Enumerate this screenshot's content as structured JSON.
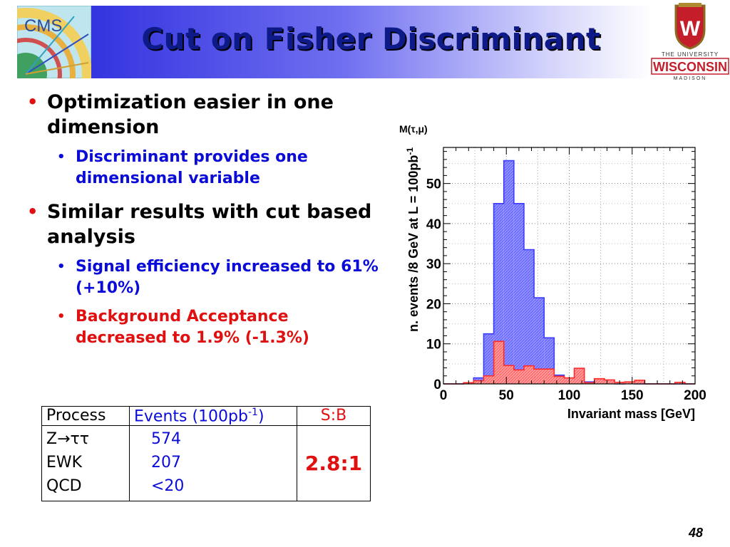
{
  "slide": {
    "title": "Cut on Fisher Discriminant",
    "page_number": "48"
  },
  "logos": {
    "left_text": "CMS",
    "right_line1": "THE UNIVERSITY",
    "right_line2": "WISCONSIN",
    "right_line3": "MADISON",
    "right_crest_letter": "W"
  },
  "bullets": [
    {
      "text": "Optimization easier in one dimension",
      "sub": [
        {
          "text": "Discriminant provides one dimensional variable",
          "color": "#0b0bd8"
        }
      ]
    },
    {
      "text": "Similar results with cut based analysis",
      "sub": [
        {
          "text": "Signal efficiency increased to 61% (+10%)",
          "color": "#0b0bd8"
        },
        {
          "text": "Background Acceptance decreased to 1.9% (-1.3%)",
          "color": "#e01010"
        }
      ]
    }
  ],
  "table": {
    "headers": {
      "process": "Process",
      "events_base": "Events (100pb",
      "events_exp": "-1",
      "events_close": ")",
      "sb": "S:B"
    },
    "rows": [
      {
        "process": "Z→ττ",
        "events": "574"
      },
      {
        "process": "EWK",
        "events": "207"
      },
      {
        "process": "QCD",
        "events": "<20"
      }
    ],
    "sb_value": "2.8:1"
  },
  "chart_data": {
    "type": "bar",
    "title": "M(τ,μ)",
    "xlabel": "Invariant mass [GeV]",
    "ylabel": "n. events /8 GeV at L = 100pb",
    "ylabel_exp": "-1",
    "xlim": [
      0,
      200
    ],
    "ylim": [
      0,
      59
    ],
    "xticks": [
      0,
      50,
      100,
      150,
      200
    ],
    "yticks": [
      0,
      10,
      20,
      30,
      40,
      50
    ],
    "bin_width": 8,
    "bin_edges": [
      0,
      8,
      16,
      24,
      32,
      40,
      48,
      56,
      64,
      72,
      80,
      88,
      96,
      104,
      112,
      120,
      128,
      136,
      144,
      152,
      160,
      168,
      176,
      184,
      192,
      200
    ],
    "series": [
      {
        "color": "#3b3bff",
        "fill": "#8f8fff",
        "values": [
          0,
          0,
          0.3,
          1.5,
          12.5,
          45,
          55.7,
          45,
          33.5,
          21.5,
          11.5,
          2.2,
          1.4,
          0.6,
          0.5,
          0.2,
          0.2,
          0,
          0.1,
          0,
          0,
          0,
          0,
          0,
          0
        ]
      },
      {
        "color": "#ff2b2b",
        "fill": "#ff9a9a",
        "values": [
          0,
          0,
          0.3,
          0.8,
          2,
          10.6,
          4.6,
          3.5,
          4.5,
          3.7,
          3.7,
          1.9,
          1.5,
          3.9,
          0.3,
          1.3,
          1,
          0.4,
          0.5,
          0.9,
          0,
          0,
          0,
          0.4,
          0
        ]
      }
    ]
  }
}
